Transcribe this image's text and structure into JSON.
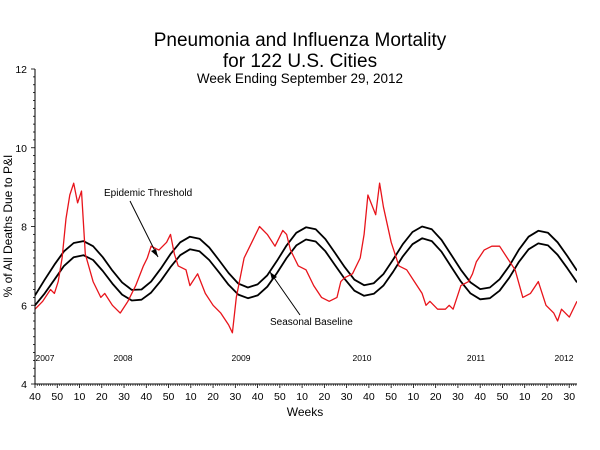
{
  "chart_data": {
    "type": "line",
    "title_line1": "Pneumonia and Influenza Mortality",
    "title_line2": "for 122 U.S. Cities",
    "subtitle": "Week Ending September 29, 2012",
    "xlabel": "Weeks",
    "ylabel": "% of All Deaths Due to P&I",
    "ylim": [
      4,
      12
    ],
    "yticks": [
      4,
      6,
      8,
      10,
      12
    ],
    "x_tick_labels": [
      "40",
      "50",
      "10",
      "20",
      "30",
      "40",
      "50",
      "10",
      "20",
      "30",
      "40",
      "50",
      "10",
      "20",
      "30",
      "40",
      "50",
      "10",
      "20",
      "30",
      "40",
      "50",
      "10",
      "20",
      "30"
    ],
    "years": [
      "2007",
      "2008",
      "2009",
      "2010",
      "2011",
      "2012"
    ],
    "grid": false,
    "annotations": [
      "Epidemic Threshold",
      "Seasonal Baseline"
    ],
    "colors": {
      "observed": "#e8141b",
      "baseline": "#000000",
      "threshold": "#000000"
    },
    "series": [
      {
        "key": "observed",
        "x": [
          0,
          4,
          8,
          10,
          12,
          14,
          16,
          18,
          20,
          22,
          24,
          26,
          30,
          34,
          36,
          40,
          44,
          48,
          52,
          56,
          58,
          60,
          64,
          68,
          70,
          72,
          74,
          78,
          80,
          84,
          88,
          92,
          96,
          100,
          102,
          104,
          108,
          112,
          116,
          120,
          124,
          128,
          130,
          132,
          134,
          136,
          140,
          144,
          148,
          152,
          156,
          158,
          160,
          164,
          168,
          170,
          172,
          176,
          178,
          180,
          184,
          188,
          192,
          196,
          200,
          202,
          204,
          208,
          212,
          214,
          216,
          218,
          220,
          224,
          226,
          228,
          232,
          236,
          240,
          244,
          248,
          252,
          256,
          260,
          264,
          268,
          270,
          272,
          276,
          280
        ],
        "y": [
          5.9,
          6.1,
          6.4,
          6.3,
          6.6,
          7.2,
          8.2,
          8.8,
          9.1,
          8.6,
          8.9,
          7.3,
          6.6,
          6.2,
          6.3,
          6.0,
          5.8,
          6.1,
          6.5,
          7.0,
          7.2,
          7.5,
          7.4,
          7.6,
          7.8,
          7.3,
          7.0,
          6.9,
          6.5,
          6.8,
          6.3,
          6.0,
          5.8,
          5.5,
          5.3,
          6.2,
          7.2,
          7.6,
          8.0,
          7.8,
          7.5,
          7.9,
          7.8,
          7.4,
          7.2,
          7.0,
          6.9,
          6.5,
          6.2,
          6.1,
          6.2,
          6.6,
          6.7,
          6.8,
          7.2,
          7.8,
          8.8,
          8.3,
          9.1,
          8.5,
          7.6,
          7.0,
          6.9,
          6.6,
          6.3,
          6.0,
          6.1,
          5.9,
          5.9,
          6.0,
          5.9,
          6.2,
          6.5,
          6.6,
          6.8,
          7.1,
          7.4,
          7.5,
          7.5,
          7.2,
          6.9,
          6.2,
          6.3,
          6.6,
          6.0,
          5.8,
          5.6,
          5.9,
          5.7,
          6.1
        ]
      },
      {
        "key": "baseline",
        "x": [
          0,
          5,
          10,
          15,
          20,
          25,
          30,
          35,
          40,
          45,
          50,
          55,
          60,
          65,
          70,
          75,
          80,
          85,
          90,
          95,
          100,
          105,
          110,
          115,
          120,
          125,
          130,
          135,
          140,
          145,
          150,
          155,
          160,
          165,
          170,
          175,
          180,
          185,
          190,
          195,
          200,
          205,
          210,
          215,
          220,
          225,
          230,
          235,
          240,
          245,
          250,
          255,
          260,
          265,
          270,
          275,
          280
        ],
        "y": [
          6.0,
          6.3,
          6.65,
          7.0,
          7.22,
          7.27,
          7.15,
          6.87,
          6.55,
          6.27,
          6.12,
          6.14,
          6.32,
          6.62,
          6.97,
          7.27,
          7.42,
          7.37,
          7.15,
          6.84,
          6.52,
          6.27,
          6.18,
          6.25,
          6.47,
          6.82,
          7.2,
          7.52,
          7.67,
          7.62,
          7.37,
          7.02,
          6.67,
          6.37,
          6.24,
          6.29,
          6.5,
          6.85,
          7.24,
          7.55,
          7.7,
          7.63,
          7.36,
          6.98,
          6.6,
          6.3,
          6.15,
          6.18,
          6.37,
          6.7,
          7.1,
          7.42,
          7.57,
          7.52,
          7.28,
          6.94,
          6.58
        ]
      },
      {
        "key": "threshold",
        "x": [
          0,
          5,
          10,
          15,
          20,
          25,
          30,
          35,
          40,
          45,
          50,
          55,
          60,
          65,
          70,
          75,
          80,
          85,
          90,
          95,
          100,
          105,
          110,
          115,
          120,
          125,
          130,
          135,
          140,
          145,
          150,
          155,
          160,
          165,
          170,
          175,
          180,
          185,
          190,
          195,
          200,
          205,
          210,
          215,
          220,
          225,
          230,
          235,
          240,
          245,
          250,
          255,
          260,
          265,
          270,
          275,
          280
        ],
        "y": [
          6.25,
          6.65,
          7.03,
          7.37,
          7.58,
          7.63,
          7.5,
          7.22,
          6.88,
          6.58,
          6.39,
          6.4,
          6.6,
          6.93,
          7.3,
          7.6,
          7.74,
          7.69,
          7.47,
          7.15,
          6.82,
          6.55,
          6.45,
          6.53,
          6.76,
          7.13,
          7.52,
          7.84,
          7.98,
          7.93,
          7.68,
          7.33,
          6.97,
          6.65,
          6.51,
          6.56,
          6.79,
          7.16,
          7.55,
          7.86,
          8.0,
          7.93,
          7.66,
          7.28,
          6.9,
          6.58,
          6.41,
          6.45,
          6.66,
          7.0,
          7.41,
          7.74,
          7.89,
          7.84,
          7.6,
          7.25,
          6.88
        ]
      }
    ]
  }
}
